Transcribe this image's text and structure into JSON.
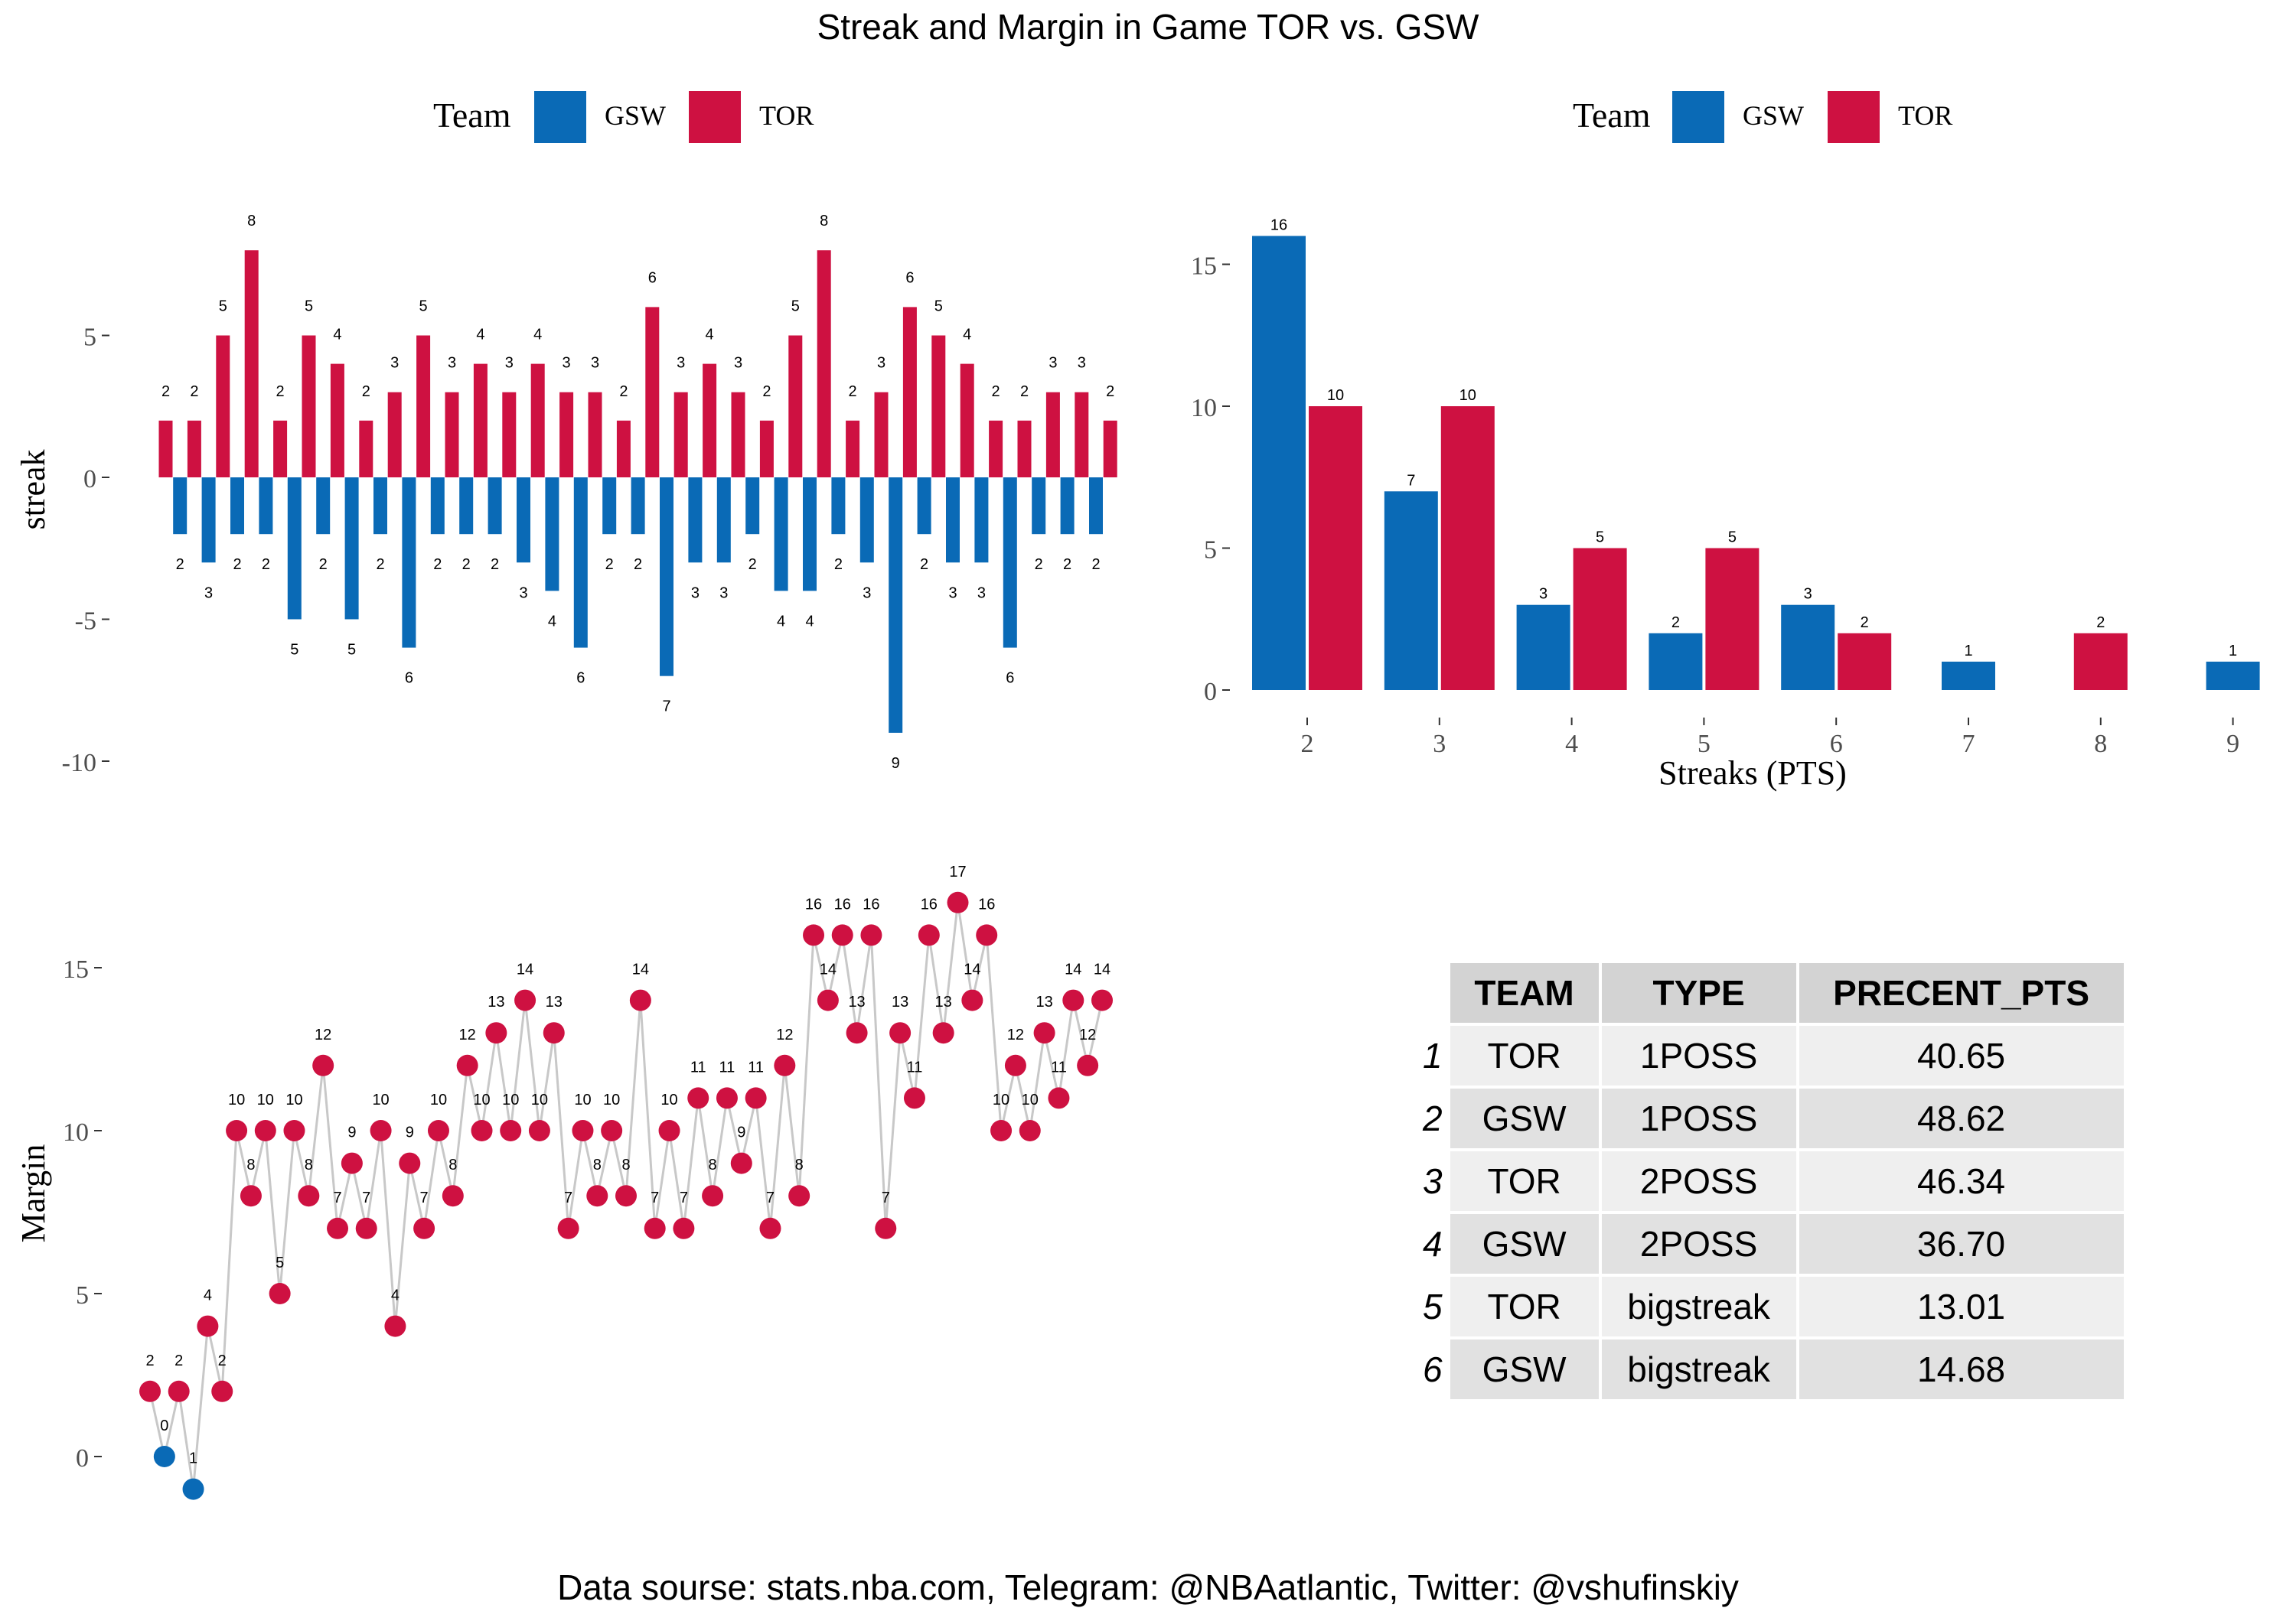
{
  "title": "Streak and Margin in Game TOR vs. GSW",
  "caption": "Data sourse: stats.nba.com, Telegram: @NBAatlantic, Twitter: @vshufinskiy",
  "colors": {
    "GSW": "#0a6ab6",
    "TOR": "#ce1141"
  },
  "legend": {
    "title": "Team",
    "items": [
      "GSW",
      "TOR"
    ]
  },
  "chart_data": [
    {
      "type": "bar",
      "ylabel": "streak",
      "xlabel": "",
      "ylim": [
        -10,
        8
      ],
      "yticks": [
        -10,
        -5,
        0,
        5
      ],
      "legend_position": "top",
      "series": [
        {
          "name": "TOR",
          "values": [
            2,
            2,
            5,
            8,
            2,
            5,
            4,
            2,
            3,
            5,
            3,
            4,
            3,
            4,
            3,
            3,
            2,
            6,
            3,
            4,
            3,
            2,
            5,
            8,
            2,
            3,
            6,
            5,
            4,
            2,
            2,
            3,
            3,
            2
          ]
        },
        {
          "name": "GSW",
          "values": [
            -2,
            -3,
            -2,
            -2,
            -5,
            -2,
            -5,
            -2,
            -6,
            -2,
            -2,
            -2,
            -3,
            -4,
            -6,
            -2,
            -2,
            -7,
            -3,
            -3,
            -2,
            -4,
            -4,
            -2,
            -3,
            -9,
            -2,
            -3,
            -3,
            -6,
            -2,
            -2,
            -2
          ]
        }
      ]
    },
    {
      "type": "bar",
      "xlabel": "Streaks (PTS)",
      "ylabel": "",
      "categories": [
        "2",
        "3",
        "4",
        "5",
        "6",
        "7",
        "8",
        "9"
      ],
      "ylim": [
        0,
        16
      ],
      "yticks": [
        0,
        5,
        10,
        15
      ],
      "legend_position": "top",
      "series": [
        {
          "name": "GSW",
          "values": [
            16,
            7,
            3,
            2,
            3,
            1,
            null,
            1
          ]
        },
        {
          "name": "TOR",
          "values": [
            10,
            10,
            5,
            5,
            2,
            null,
            2,
            null
          ]
        }
      ]
    },
    {
      "type": "line",
      "ylabel": "Margin",
      "xlabel": "",
      "ylim": [
        -1,
        17
      ],
      "yticks": [
        0,
        5,
        10,
        15
      ],
      "values": [
        2,
        0,
        2,
        -1,
        4,
        2,
        10,
        8,
        10,
        5,
        10,
        8,
        12,
        7,
        9,
        7,
        10,
        4,
        9,
        7,
        10,
        8,
        12,
        10,
        13,
        10,
        14,
        10,
        13,
        7,
        10,
        8,
        10,
        8,
        14,
        7,
        10,
        7,
        11,
        8,
        11,
        9,
        11,
        7,
        12,
        8,
        16,
        14,
        16,
        13,
        16,
        7,
        13,
        11,
        16,
        13,
        17,
        14,
        16,
        10,
        12,
        10,
        13,
        11,
        14,
        12,
        14
      ],
      "labels": [
        "2",
        "0",
        "2",
        "1",
        "4",
        "2",
        "10",
        "8",
        "10",
        "5",
        "10",
        "8",
        "12",
        "7",
        "9",
        "7",
        "10",
        "4",
        "9",
        "7",
        "10",
        "8",
        "12",
        "10",
        "13",
        "10",
        "14",
        "10",
        "13",
        "7",
        "10",
        "8",
        "10",
        "8",
        "14",
        "7",
        "10",
        "7",
        "11",
        "8",
        "11",
        "9",
        "11",
        "7",
        "12",
        "8",
        "16",
        "14",
        "16",
        "13",
        "16",
        "7",
        "13",
        "11",
        "16",
        "13",
        "17",
        "14",
        "16",
        "10",
        "12",
        "10",
        "13",
        "11",
        "14",
        "12",
        "14"
      ],
      "teams": [
        "TOR",
        "GSW",
        "TOR",
        "GSW",
        "TOR",
        "TOR",
        "TOR",
        "TOR",
        "TOR",
        "TOR",
        "TOR",
        "TOR",
        "TOR",
        "TOR",
        "TOR",
        "TOR",
        "TOR",
        "TOR",
        "TOR",
        "TOR",
        "TOR",
        "TOR",
        "TOR",
        "TOR",
        "TOR",
        "TOR",
        "TOR",
        "TOR",
        "TOR",
        "TOR",
        "TOR",
        "TOR",
        "TOR",
        "TOR",
        "TOR",
        "TOR",
        "TOR",
        "TOR",
        "TOR",
        "TOR",
        "TOR",
        "TOR",
        "TOR",
        "TOR",
        "TOR",
        "TOR",
        "TOR",
        "TOR",
        "TOR",
        "TOR",
        "TOR",
        "TOR",
        "TOR",
        "TOR",
        "TOR",
        "TOR",
        "TOR",
        "TOR",
        "TOR",
        "TOR",
        "TOR",
        "TOR",
        "TOR",
        "TOR",
        "TOR",
        "TOR",
        "TOR"
      ]
    },
    {
      "type": "table",
      "columns": [
        "TEAM",
        "TYPE",
        "PRECENT_PTS"
      ],
      "rows": [
        {
          "n": "1",
          "team": "TOR",
          "type": "1POSS",
          "pct": "40.65"
        },
        {
          "n": "2",
          "team": "GSW",
          "type": "1POSS",
          "pct": "48.62"
        },
        {
          "n": "3",
          "team": "TOR",
          "type": "2POSS",
          "pct": "46.34"
        },
        {
          "n": "4",
          "team": "GSW",
          "type": "2POSS",
          "pct": "36.70"
        },
        {
          "n": "5",
          "team": "TOR",
          "type": "bigstreak",
          "pct": "13.01"
        },
        {
          "n": "6",
          "team": "GSW",
          "type": "bigstreak",
          "pct": "14.68"
        }
      ]
    }
  ]
}
